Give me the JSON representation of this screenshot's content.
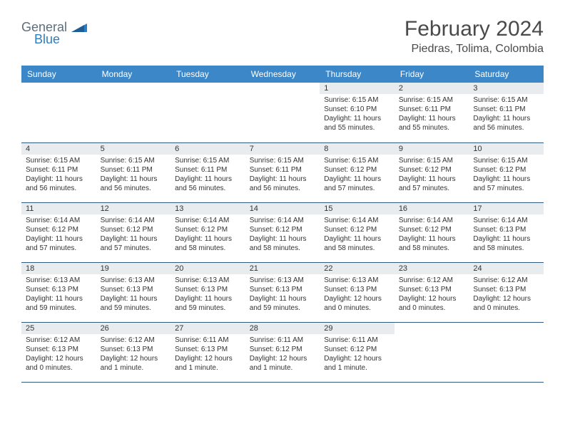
{
  "brand": {
    "word1": "General",
    "word2": "Blue",
    "color1": "#5d6e7b",
    "color2": "#2f7ec2"
  },
  "title": "February 2024",
  "location": "Piedras, Tolima, Colombia",
  "colors": {
    "header_bg": "#3b87c8",
    "header_fg": "#ffffff",
    "daynum_bg": "#e9ecef",
    "rule": "#2f5b82",
    "text": "#333333",
    "page_bg": "#ffffff"
  },
  "day_names": [
    "Sunday",
    "Monday",
    "Tuesday",
    "Wednesday",
    "Thursday",
    "Friday",
    "Saturday"
  ],
  "weeks": [
    [
      null,
      null,
      null,
      null,
      {
        "n": "1",
        "sr": "Sunrise: 6:15 AM",
        "ss": "Sunset: 6:10 PM",
        "dl": "Daylight: 11 hours and 55 minutes."
      },
      {
        "n": "2",
        "sr": "Sunrise: 6:15 AM",
        "ss": "Sunset: 6:11 PM",
        "dl": "Daylight: 11 hours and 55 minutes."
      },
      {
        "n": "3",
        "sr": "Sunrise: 6:15 AM",
        "ss": "Sunset: 6:11 PM",
        "dl": "Daylight: 11 hours and 56 minutes."
      }
    ],
    [
      {
        "n": "4",
        "sr": "Sunrise: 6:15 AM",
        "ss": "Sunset: 6:11 PM",
        "dl": "Daylight: 11 hours and 56 minutes."
      },
      {
        "n": "5",
        "sr": "Sunrise: 6:15 AM",
        "ss": "Sunset: 6:11 PM",
        "dl": "Daylight: 11 hours and 56 minutes."
      },
      {
        "n": "6",
        "sr": "Sunrise: 6:15 AM",
        "ss": "Sunset: 6:11 PM",
        "dl": "Daylight: 11 hours and 56 minutes."
      },
      {
        "n": "7",
        "sr": "Sunrise: 6:15 AM",
        "ss": "Sunset: 6:11 PM",
        "dl": "Daylight: 11 hours and 56 minutes."
      },
      {
        "n": "8",
        "sr": "Sunrise: 6:15 AM",
        "ss": "Sunset: 6:12 PM",
        "dl": "Daylight: 11 hours and 57 minutes."
      },
      {
        "n": "9",
        "sr": "Sunrise: 6:15 AM",
        "ss": "Sunset: 6:12 PM",
        "dl": "Daylight: 11 hours and 57 minutes."
      },
      {
        "n": "10",
        "sr": "Sunrise: 6:15 AM",
        "ss": "Sunset: 6:12 PM",
        "dl": "Daylight: 11 hours and 57 minutes."
      }
    ],
    [
      {
        "n": "11",
        "sr": "Sunrise: 6:14 AM",
        "ss": "Sunset: 6:12 PM",
        "dl": "Daylight: 11 hours and 57 minutes."
      },
      {
        "n": "12",
        "sr": "Sunrise: 6:14 AM",
        "ss": "Sunset: 6:12 PM",
        "dl": "Daylight: 11 hours and 57 minutes."
      },
      {
        "n": "13",
        "sr": "Sunrise: 6:14 AM",
        "ss": "Sunset: 6:12 PM",
        "dl": "Daylight: 11 hours and 58 minutes."
      },
      {
        "n": "14",
        "sr": "Sunrise: 6:14 AM",
        "ss": "Sunset: 6:12 PM",
        "dl": "Daylight: 11 hours and 58 minutes."
      },
      {
        "n": "15",
        "sr": "Sunrise: 6:14 AM",
        "ss": "Sunset: 6:12 PM",
        "dl": "Daylight: 11 hours and 58 minutes."
      },
      {
        "n": "16",
        "sr": "Sunrise: 6:14 AM",
        "ss": "Sunset: 6:12 PM",
        "dl": "Daylight: 11 hours and 58 minutes."
      },
      {
        "n": "17",
        "sr": "Sunrise: 6:14 AM",
        "ss": "Sunset: 6:13 PM",
        "dl": "Daylight: 11 hours and 58 minutes."
      }
    ],
    [
      {
        "n": "18",
        "sr": "Sunrise: 6:13 AM",
        "ss": "Sunset: 6:13 PM",
        "dl": "Daylight: 11 hours and 59 minutes."
      },
      {
        "n": "19",
        "sr": "Sunrise: 6:13 AM",
        "ss": "Sunset: 6:13 PM",
        "dl": "Daylight: 11 hours and 59 minutes."
      },
      {
        "n": "20",
        "sr": "Sunrise: 6:13 AM",
        "ss": "Sunset: 6:13 PM",
        "dl": "Daylight: 11 hours and 59 minutes."
      },
      {
        "n": "21",
        "sr": "Sunrise: 6:13 AM",
        "ss": "Sunset: 6:13 PM",
        "dl": "Daylight: 11 hours and 59 minutes."
      },
      {
        "n": "22",
        "sr": "Sunrise: 6:13 AM",
        "ss": "Sunset: 6:13 PM",
        "dl": "Daylight: 12 hours and 0 minutes."
      },
      {
        "n": "23",
        "sr": "Sunrise: 6:12 AM",
        "ss": "Sunset: 6:13 PM",
        "dl": "Daylight: 12 hours and 0 minutes."
      },
      {
        "n": "24",
        "sr": "Sunrise: 6:12 AM",
        "ss": "Sunset: 6:13 PM",
        "dl": "Daylight: 12 hours and 0 minutes."
      }
    ],
    [
      {
        "n": "25",
        "sr": "Sunrise: 6:12 AM",
        "ss": "Sunset: 6:13 PM",
        "dl": "Daylight: 12 hours and 0 minutes."
      },
      {
        "n": "26",
        "sr": "Sunrise: 6:12 AM",
        "ss": "Sunset: 6:13 PM",
        "dl": "Daylight: 12 hours and 1 minute."
      },
      {
        "n": "27",
        "sr": "Sunrise: 6:11 AM",
        "ss": "Sunset: 6:13 PM",
        "dl": "Daylight: 12 hours and 1 minute."
      },
      {
        "n": "28",
        "sr": "Sunrise: 6:11 AM",
        "ss": "Sunset: 6:12 PM",
        "dl": "Daylight: 12 hours and 1 minute."
      },
      {
        "n": "29",
        "sr": "Sunrise: 6:11 AM",
        "ss": "Sunset: 6:12 PM",
        "dl": "Daylight: 12 hours and 1 minute."
      },
      null,
      null
    ]
  ]
}
